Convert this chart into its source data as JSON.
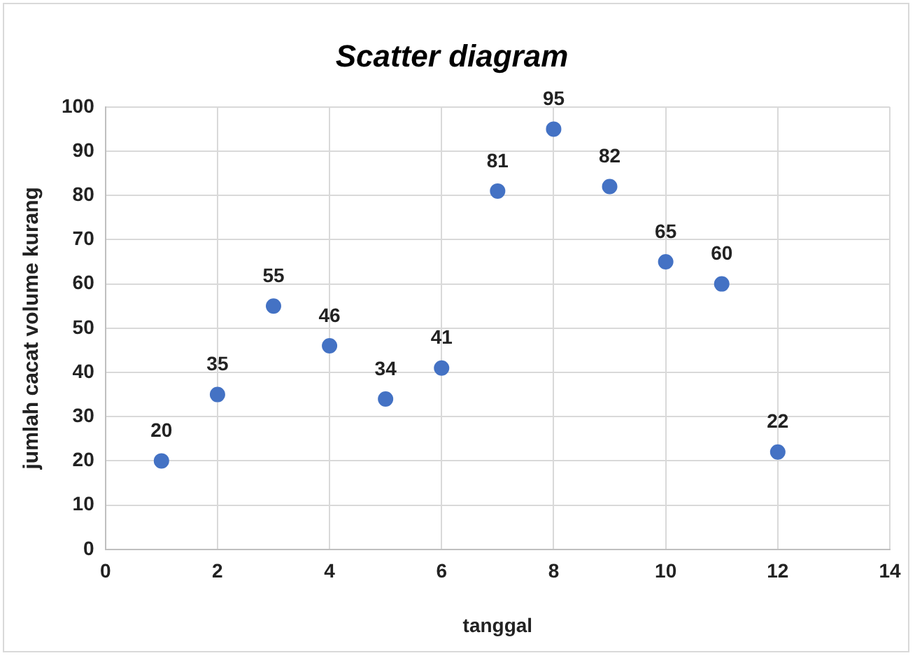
{
  "chart_data": {
    "type": "scatter",
    "title": "Scatter diagram",
    "xlabel": "tanggal",
    "ylabel": "jumlah cacat volume kurang",
    "x": [
      1,
      2,
      3,
      4,
      5,
      6,
      7,
      8,
      9,
      10,
      11,
      12
    ],
    "series": [
      {
        "color": "#4472c4",
        "values": [
          20,
          35,
          55,
          46,
          34,
          41,
          81,
          95,
          82,
          65,
          60,
          22
        ]
      }
    ],
    "xlim": [
      0,
      14
    ],
    "xticks": [
      0,
      2,
      4,
      6,
      8,
      10,
      12,
      14
    ],
    "ylim": [
      0,
      100
    ],
    "yticks": [
      0,
      10,
      20,
      30,
      40,
      50,
      60,
      70,
      80,
      90,
      100
    ],
    "grid": true,
    "legend": false,
    "marker": "circle",
    "data_labels": true
  }
}
